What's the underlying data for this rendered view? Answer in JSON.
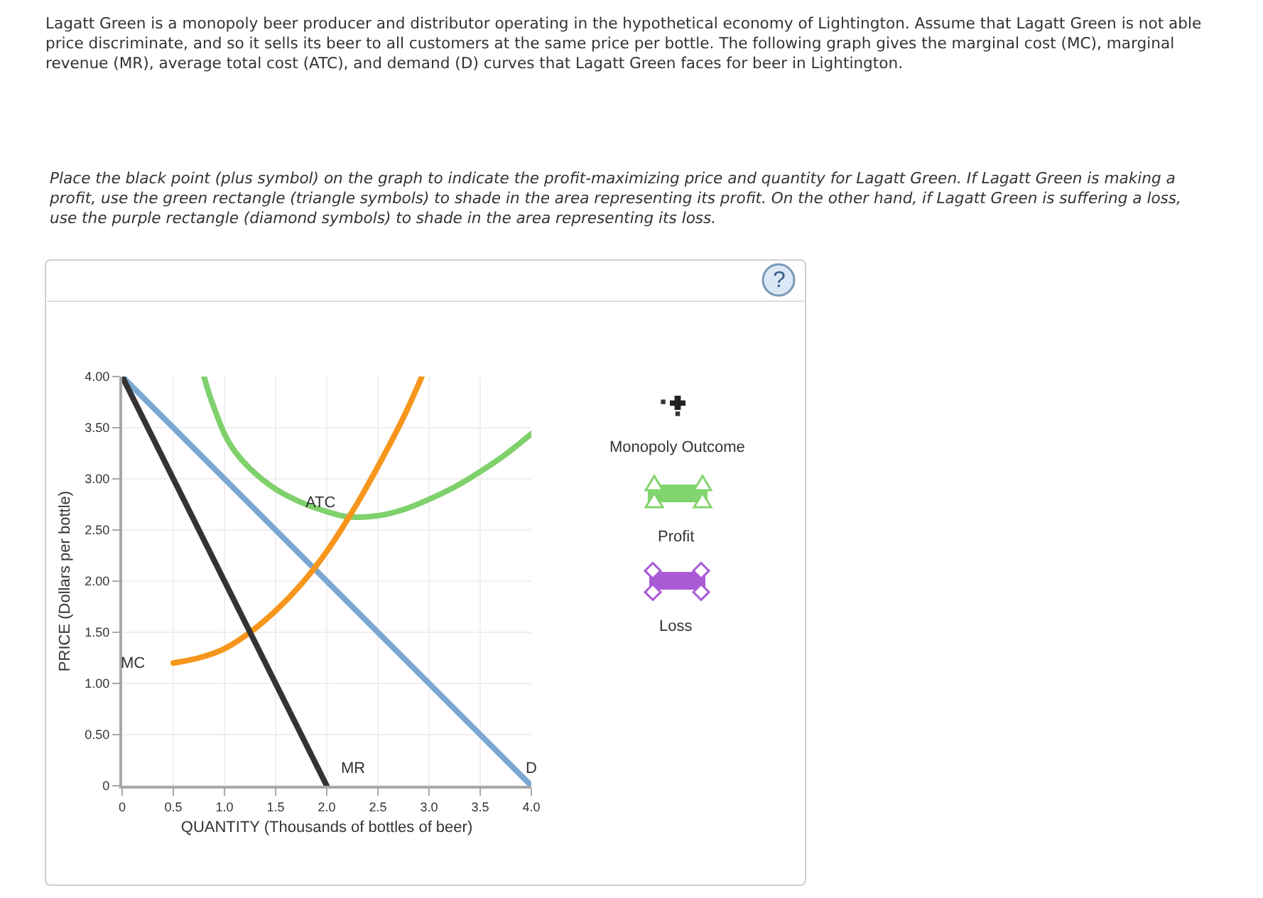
{
  "chart_data": {
    "type": "line",
    "title": "Lagatt Green is a monopoly beer producer and distributor operating in the hypothetical economy of Lightington. Assume that Lagatt Green is not able price discriminate, and so it sells its beer to all customers at the same price per bottle. The following graph gives the marginal cost (MC), marginal revenue (MR), average total cost (ATC), and demand (D) curves that Lagatt Green faces for beer in Lightington.",
    "subtitle": "Place the black point (plus symbol) on the graph to indicate the profit-maximizing price and quantity for Lagatt Green. If Lagatt Green is making a profit, use the green rectangle (triangle symbols) to shade in the area representing its profit. On the other hand, if Lagatt Green is suffering a loss, use the purple rectangle (diamond symbols) to shade in the area representing its loss.",
    "xlabel": "QUANTITY (Thousands of bottles of beer)",
    "ylabel": "PRICE (Dollars per bottle)",
    "xlim": [
      0,
      4
    ],
    "ylim": [
      0,
      4
    ],
    "xticks": [
      0,
      0.5,
      {
        "value": 1,
        "label": "1.0"
      },
      1.5,
      {
        "value": 2,
        "label": "2.0"
      },
      2.5,
      {
        "value": 3,
        "label": "3.0"
      },
      3.5,
      {
        "value": 4,
        "label": "4.0"
      }
    ],
    "yticks": [
      0,
      {
        "value": 0.5,
        "label": "0.50"
      },
      {
        "value": 1,
        "label": "1.00"
      },
      {
        "value": 1.5,
        "label": "1.50"
      },
      {
        "value": 2,
        "label": "2.00"
      },
      {
        "value": 2.5,
        "label": "2.50"
      },
      {
        "value": 3,
        "label": "3.00"
      },
      {
        "value": 3.5,
        "label": "3.50"
      },
      {
        "value": 4,
        "label": "4.00"
      }
    ],
    "grid": true,
    "series": [
      {
        "name": "D",
        "color": "#7ba7d3",
        "x": [
          0,
          4
        ],
        "values": [
          4,
          0
        ]
      },
      {
        "name": "ATC",
        "color": "#7fd16c",
        "x": [
          0.8,
          0.85,
          0.9,
          1.0,
          1.1,
          1.25,
          1.5,
          1.75,
          2.0,
          2.2,
          2.5,
          2.75,
          3.0,
          3.25,
          3.5,
          3.75,
          4.0
        ],
        "values": [
          4.0,
          3.83,
          3.69,
          3.44,
          3.27,
          3.1,
          2.9,
          2.77,
          2.68,
          2.63,
          2.64,
          2.7,
          2.8,
          2.92,
          3.07,
          3.24,
          3.44
        ]
      },
      {
        "name": "MC",
        "color": "#f7961c",
        "x": [
          0.5,
          0.75,
          1.0,
          1.25,
          1.5,
          1.75,
          2.0,
          2.25,
          2.5,
          2.75,
          2.93
        ],
        "values": [
          1.2,
          1.25,
          1.34,
          1.5,
          1.71,
          1.97,
          2.29,
          2.68,
          3.12,
          3.6,
          4.0
        ]
      },
      {
        "name": "MR",
        "color": "#333333",
        "x": [
          0,
          2
        ],
        "values": [
          4,
          0
        ]
      }
    ],
    "annotations": [
      "Monopoly Outcome",
      "Profit",
      "Loss",
      "?"
    ]
  }
}
